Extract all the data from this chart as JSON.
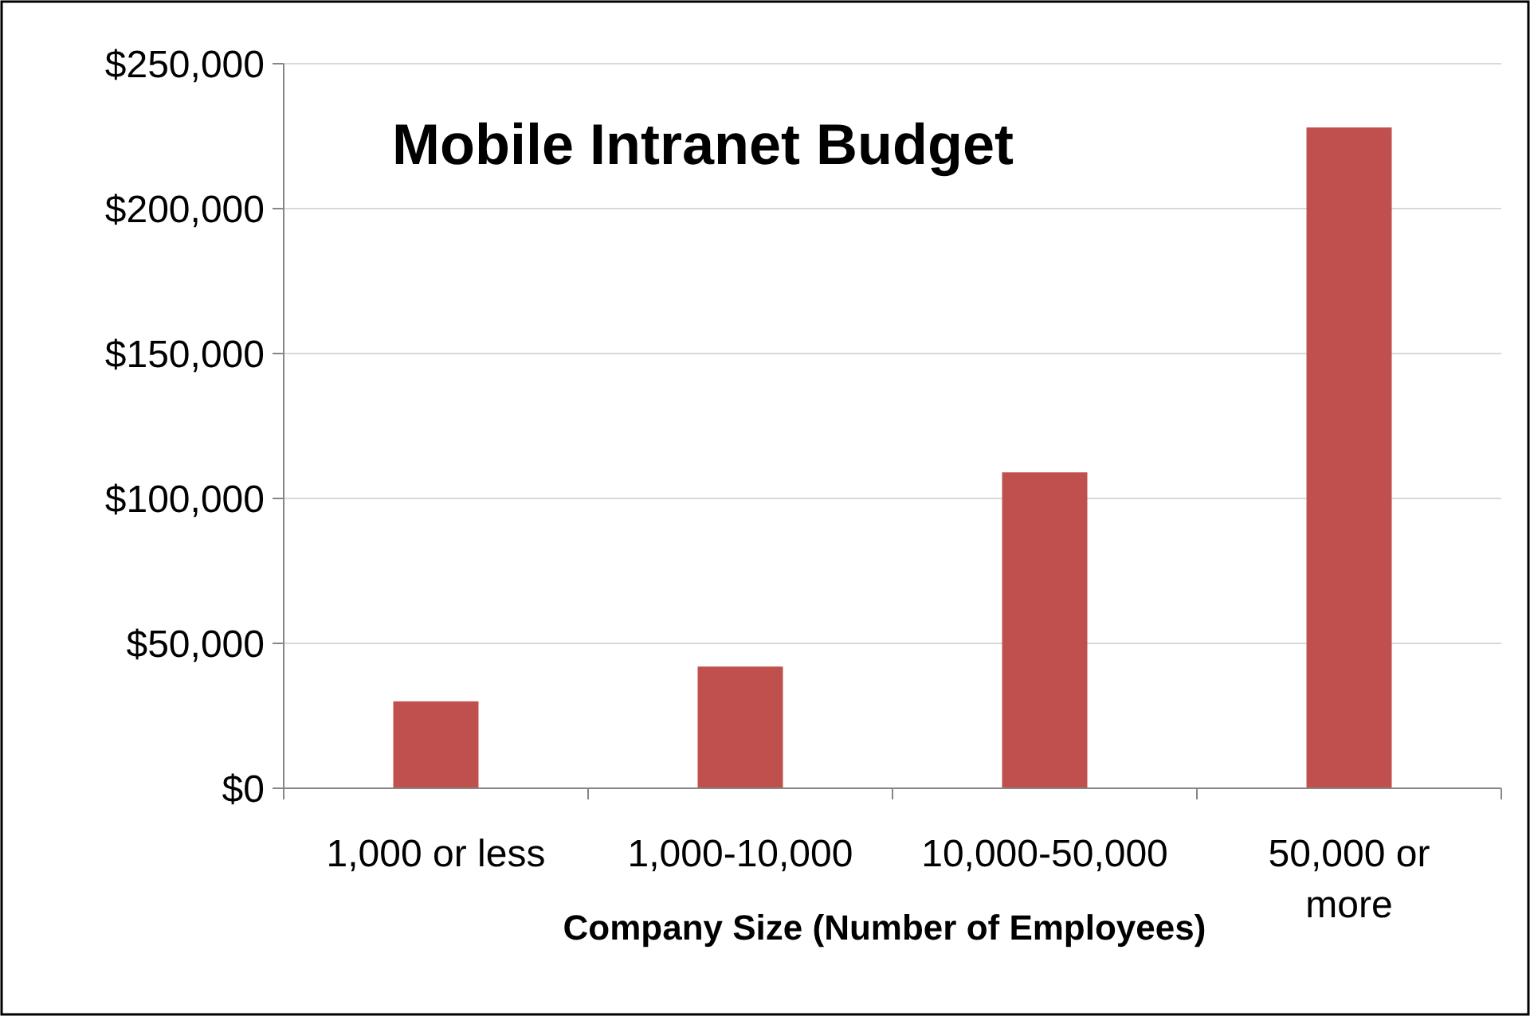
{
  "chart_data": {
    "type": "bar",
    "title": "Mobile Intranet Budget",
    "xlabel": "Company Size (Number of Employees)",
    "categories": [
      "1,000 or less",
      "1,000-10,000",
      "10,000-50,000",
      "50,000 or more"
    ],
    "values": [
      30000,
      42000,
      109000,
      228000
    ],
    "color": "#c0504d",
    "ylim": [
      0,
      250000
    ],
    "yticks": [
      {
        "value": 0,
        "label": "$0"
      },
      {
        "value": 50000,
        "label": "$50,000"
      },
      {
        "value": 100000,
        "label": "$100,000"
      },
      {
        "value": 150000,
        "label": "$150,000"
      },
      {
        "value": 200000,
        "label": "$200,000"
      },
      {
        "value": 250000,
        "label": "$250,000"
      }
    ],
    "grid": "y"
  }
}
